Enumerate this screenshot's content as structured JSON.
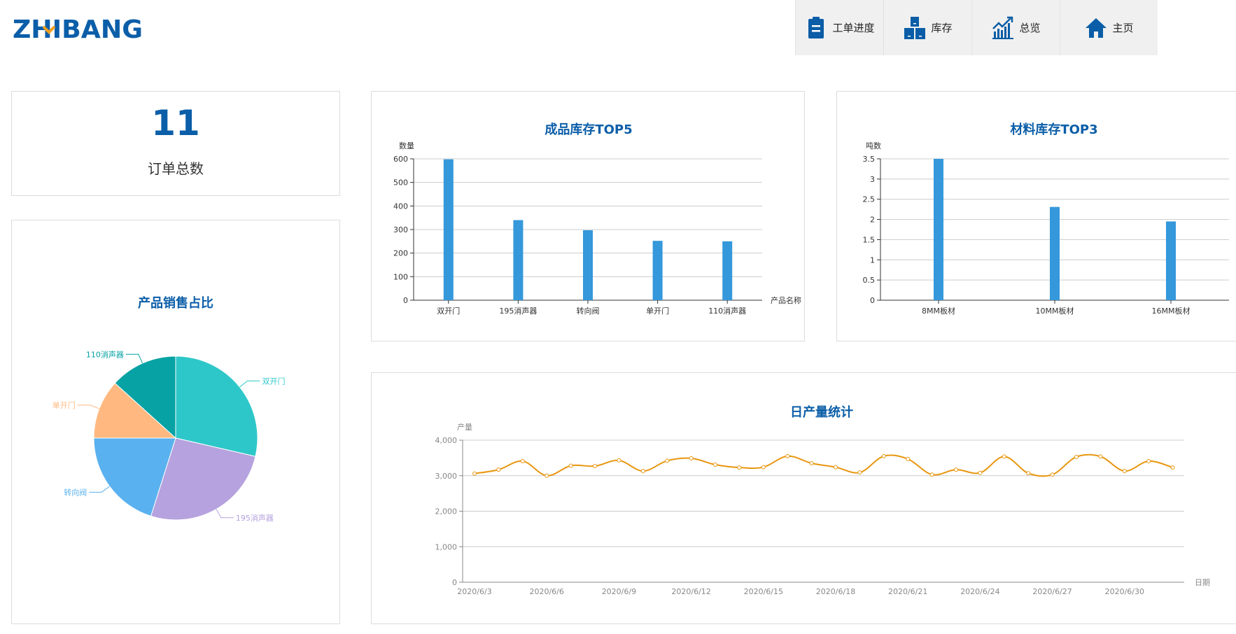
{
  "logo": {
    "text": "ZHIBANG"
  },
  "nav": [
    {
      "label": "工单进度",
      "icon": "clipboard-icon"
    },
    {
      "label": "库存",
      "icon": "boxes-icon"
    },
    {
      "label": "总览",
      "icon": "trend-chart-icon"
    },
    {
      "label": "主页",
      "icon": "home-icon"
    }
  ],
  "order_card": {
    "value": "11",
    "label": "订单总数"
  },
  "colors": {
    "accent": "#0b5ea8",
    "bar": "#3498db",
    "line": "#e8960f",
    "pie": [
      "#2ec7c9",
      "#b6a2de",
      "#5ab1ef",
      "#ffb980",
      "#07a2a4"
    ]
  },
  "chart_data": [
    {
      "type": "pie",
      "title": "产品销售占比",
      "categories": [
        "双开门",
        "195消声器",
        "转向阀",
        "单开门",
        "110消声器"
      ],
      "values": [
        28.6,
        26.3,
        20.1,
        11.7,
        13.3
      ]
    },
    {
      "type": "bar",
      "title": "成品库存TOP5",
      "ylabel": "数量",
      "xlabel": "产品名称",
      "categories": [
        "双开门",
        "195消声器",
        "转向阀",
        "单开门",
        "110消声器"
      ],
      "values": [
        598,
        340,
        297,
        252,
        250
      ],
      "ylim": [
        0,
        600
      ],
      "yticks": [
        "0",
        "100",
        "200",
        "300",
        "400",
        "500",
        "600"
      ],
      "grid": true
    },
    {
      "type": "bar",
      "title": "材料库存TOP3",
      "ylabel": "吨数",
      "xlabel": "",
      "categories": [
        "8MM板材",
        "10MM板材",
        "16MM板材"
      ],
      "values": [
        3.5,
        2.31,
        1.95
      ],
      "ylim": [
        0,
        3.5
      ],
      "yticks": [
        "0",
        "0.5",
        "1",
        "1.5",
        "2",
        "2.5",
        "3",
        "3.5"
      ],
      "grid": true
    },
    {
      "type": "line",
      "title": "日产量统计",
      "ylabel": "产量",
      "xlabel": "日期",
      "ylim": [
        0,
        4000
      ],
      "yticks": [
        "0",
        "1,000",
        "2,000",
        "3,000",
        "4,000"
      ],
      "grid": true,
      "smooth": true,
      "x": [
        "2020/6/3",
        "2020/6/4",
        "2020/6/5",
        "2020/6/6",
        "2020/6/7",
        "2020/6/8",
        "2020/6/9",
        "2020/6/10",
        "2020/6/11",
        "2020/6/12",
        "2020/6/13",
        "2020/6/14",
        "2020/6/15",
        "2020/6/16",
        "2020/6/17",
        "2020/6/18",
        "2020/6/19",
        "2020/6/20",
        "2020/6/21",
        "2020/6/22",
        "2020/6/23",
        "2020/6/24",
        "2020/6/25",
        "2020/6/26",
        "2020/6/27",
        "2020/6/28",
        "2020/6/29",
        "2020/6/30",
        "2020/7/1",
        "2020/7/2"
      ],
      "xticks": [
        "2020/6/3",
        "2020/6/6",
        "2020/6/9",
        "2020/6/12",
        "2020/6/15",
        "2020/6/18",
        "2020/6/21",
        "2020/6/24",
        "2020/6/27",
        "2020/6/30"
      ],
      "values": [
        3060,
        3170,
        3410,
        3000,
        3280,
        3270,
        3430,
        3130,
        3420,
        3490,
        3310,
        3230,
        3240,
        3550,
        3350,
        3240,
        3090,
        3550,
        3470,
        3030,
        3170,
        3080,
        3540,
        3070,
        3030,
        3530,
        3540,
        3130,
        3410,
        3230
      ]
    }
  ]
}
